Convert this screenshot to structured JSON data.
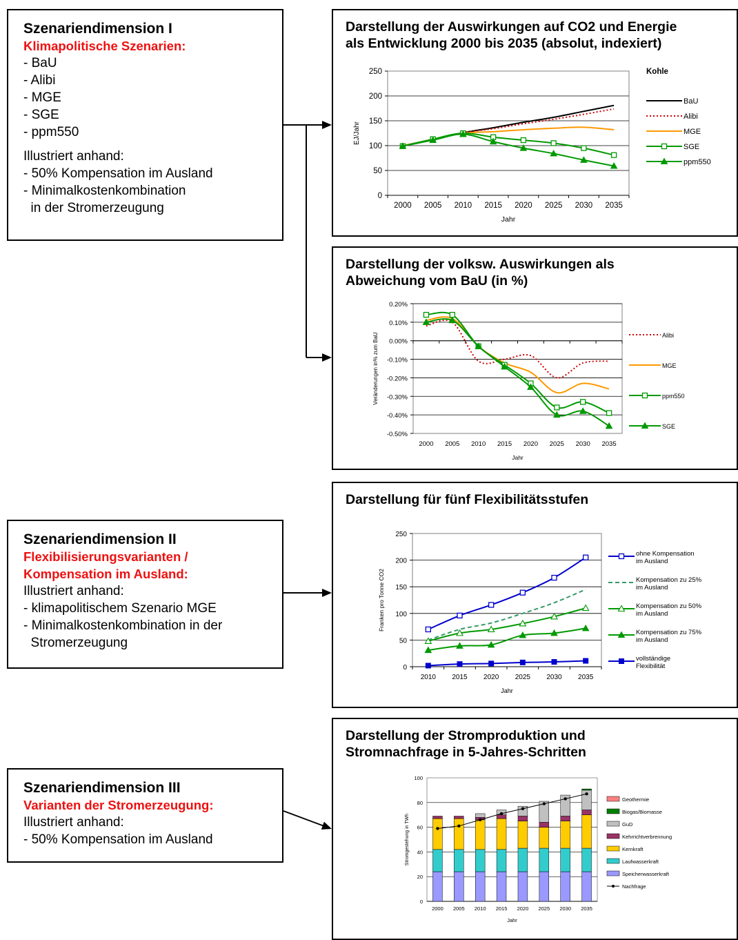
{
  "dimensions": [
    {
      "title": "Szenariendimension I",
      "subtitle": [
        "Klimapolitische Szenarien:"
      ],
      "lines": [
        "- BaU",
        "- Alibi",
        "- MGE",
        "- SGE",
        "- ppm550"
      ],
      "lines2": [
        "Illustriert anhand:",
        "- 50% Kompensation im Ausland",
        "- Minimalkostenkombination",
        "  in der Stromerzeugung"
      ]
    },
    {
      "title": "Szenariendimension II",
      "subtitle": [
        "Flexibilisierungsvarianten /",
        "Kompensation im Ausland:"
      ],
      "lines": [
        "Illustriert anhand:",
        "- klimapolitischem Szenario MGE",
        "- Minimalkostenkombination in der",
        "  Stromerzeugung"
      ],
      "lines2": []
    },
    {
      "title": "Szenariendimension III",
      "subtitle": [
        "Varianten der Stromerzeugung:"
      ],
      "lines": [
        "Illustriert anhand:",
        "- 50% Kompensation im Ausland"
      ],
      "lines2": []
    }
  ],
  "panels": [
    {
      "title_lines": [
        "Darstellung der Auswirkungen auf CO2 und Energie",
        "als Entwicklung 2000 bis 2035 (absolut, indexiert)"
      ]
    },
    {
      "title_lines": [
        "Darstellung der volksw. Auswirkungen als",
        "Abweichung vom BaU (in %)"
      ]
    },
    {
      "title_lines": [
        "Darstellung für fünf Flexibilitätsstufen"
      ]
    },
    {
      "title_lines": [
        "Darstellung der Stromproduktion und",
        "Stromnachfrage in 5-Jahres-Schritten"
      ]
    }
  ],
  "chart_data": [
    {
      "type": "line",
      "title": "Kohle",
      "xlabel": "Jahr",
      "ylabel": "EJ/Jahr",
      "x": [
        2000,
        2005,
        2010,
        2015,
        2020,
        2025,
        2030,
        2035
      ],
      "ylim": [
        0,
        250
      ],
      "yticks": [
        0,
        50,
        100,
        150,
        200,
        250
      ],
      "legend": "right",
      "series": [
        {
          "name": "BaU",
          "color": "#000000",
          "style": "solid",
          "marker": "none",
          "values": [
            100,
            112,
            126,
            136,
            147,
            157,
            169,
            181
          ]
        },
        {
          "name": "Alibi",
          "color": "#cc0000",
          "style": "dotted",
          "marker": "none",
          "values": [
            100,
            112,
            126,
            134,
            144,
            153,
            163,
            174
          ]
        },
        {
          "name": "MGE",
          "color": "#ff9900",
          "style": "solid",
          "marker": "none",
          "values": [
            100,
            112,
            125,
            128,
            132,
            135,
            137,
            132
          ]
        },
        {
          "name": "SGE",
          "color": "#009900",
          "style": "solid",
          "marker": "square-open",
          "values": [
            99,
            113,
            125,
            117,
            111,
            105,
            95,
            81
          ]
        },
        {
          "name": "ppm550",
          "color": "#009900",
          "style": "solid",
          "marker": "triangle-filled",
          "values": [
            99,
            111,
            123,
            108,
            95,
            84,
            71,
            59
          ]
        }
      ]
    },
    {
      "type": "line",
      "title": "",
      "xlabel": "Jahr",
      "ylabel": "Veränderungen in% zum BaU",
      "x": [
        2000,
        2005,
        2010,
        2015,
        2020,
        2025,
        2030,
        2035
      ],
      "ylim": [
        -0.5,
        0.2
      ],
      "yticks": [
        "-0.50%",
        "-0.40%",
        "-0.30%",
        "-0.20%",
        "-0.10%",
        "0.00%",
        "0.10%",
        "0.20%"
      ],
      "legend": "right",
      "series": [
        {
          "name": "Alibi",
          "color": "#cc0000",
          "style": "dotted",
          "marker": "none",
          "values": [
            0.08,
            0.1,
            -0.11,
            -0.1,
            -0.08,
            -0.2,
            -0.12,
            -0.11
          ]
        },
        {
          "name": "MGE",
          "color": "#ff9900",
          "style": "solid",
          "marker": "none",
          "values": [
            0.11,
            0.12,
            -0.03,
            -0.12,
            -0.17,
            -0.28,
            -0.23,
            -0.26
          ]
        },
        {
          "name": "ppm550",
          "color": "#009900",
          "style": "solid",
          "marker": "square-open",
          "values": [
            0.14,
            0.14,
            -0.03,
            -0.13,
            -0.23,
            -0.36,
            -0.33,
            -0.39
          ]
        },
        {
          "name": "SGE",
          "color": "#009900",
          "style": "solid",
          "marker": "triangle-filled",
          "values": [
            0.1,
            0.11,
            -0.03,
            -0.14,
            -0.25,
            -0.4,
            -0.38,
            -0.46
          ]
        }
      ]
    },
    {
      "type": "line",
      "title": "",
      "xlabel": "Jahr",
      "ylabel": "Franken pro Tonne CO2",
      "x": [
        2010,
        2015,
        2020,
        2025,
        2030,
        2035
      ],
      "ylim": [
        0,
        250
      ],
      "yticks": [
        0,
        50,
        100,
        150,
        200,
        250
      ],
      "legend": "right",
      "series": [
        {
          "name": "ohne Kompensation im Ausland",
          "color": "#0000cc",
          "style": "solid",
          "marker": "square-open",
          "values": [
            70,
            96,
            116,
            139,
            167,
            205
          ]
        },
        {
          "name": "Kompensation zu 25% im Ausland",
          "color": "#339966",
          "style": "dashed",
          "marker": "none",
          "values": [
            50,
            70,
            82,
            100,
            120,
            145
          ]
        },
        {
          "name": "Kompensation zu 50% im Ausland",
          "color": "#009900",
          "style": "solid",
          "marker": "triangle-open",
          "values": [
            48,
            63,
            70,
            81,
            94,
            110
          ]
        },
        {
          "name": "Kompensation zu 75% im Ausland",
          "color": "#009900",
          "style": "solid",
          "marker": "triangle-filled",
          "values": [
            31,
            39,
            41,
            59,
            63,
            72
          ]
        },
        {
          "name": "vollständige Flexibilität",
          "color": "#0000cc",
          "style": "solid",
          "marker": "square-filled",
          "values": [
            2,
            5,
            6,
            8,
            9,
            11
          ]
        }
      ]
    },
    {
      "type": "bar",
      "title": "",
      "xlabel": "Jahr",
      "ylabel": "Stromgestehung in TWh",
      "categories": [
        "2000",
        "2005",
        "2010",
        "2015",
        "2020",
        "2025",
        "2030",
        "2035"
      ],
      "ylim": [
        0,
        100
      ],
      "yticks": [
        0,
        20,
        40,
        60,
        80,
        100
      ],
      "legend": "right",
      "series": [
        {
          "name": "Speicherwasserkraft",
          "color": "#9999ff",
          "values": [
            24,
            24,
            24,
            24,
            24,
            24,
            24,
            24
          ]
        },
        {
          "name": "Laufwasserkraft",
          "color": "#33cccc",
          "values": [
            18,
            18,
            18,
            18,
            19,
            19,
            19,
            19
          ]
        },
        {
          "name": "Kernkraft",
          "color": "#ffcc00",
          "values": [
            25,
            25,
            24,
            25,
            22,
            17,
            22,
            27
          ]
        },
        {
          "name": "Kehrrichtverbrennung",
          "color": "#993366",
          "values": [
            2,
            2,
            2,
            3,
            4,
            4,
            4,
            4
          ]
        },
        {
          "name": "GuD",
          "color": "#c0c0c0",
          "values": [
            0,
            0,
            3,
            4,
            8,
            17,
            17,
            16
          ]
        },
        {
          "name": "Biogas/Biomasse",
          "color": "#008000",
          "values": [
            0,
            0,
            0,
            0,
            0,
            0,
            0,
            1
          ]
        },
        {
          "name": "Geothermie",
          "color": "#ff8080",
          "values": [
            0,
            0,
            0,
            0,
            0,
            0,
            0,
            0
          ]
        }
      ],
      "line_series": {
        "name": "Nachfrage",
        "color": "#000000",
        "values": [
          59,
          61,
          66,
          71,
          75,
          79,
          83,
          87
        ]
      }
    }
  ]
}
